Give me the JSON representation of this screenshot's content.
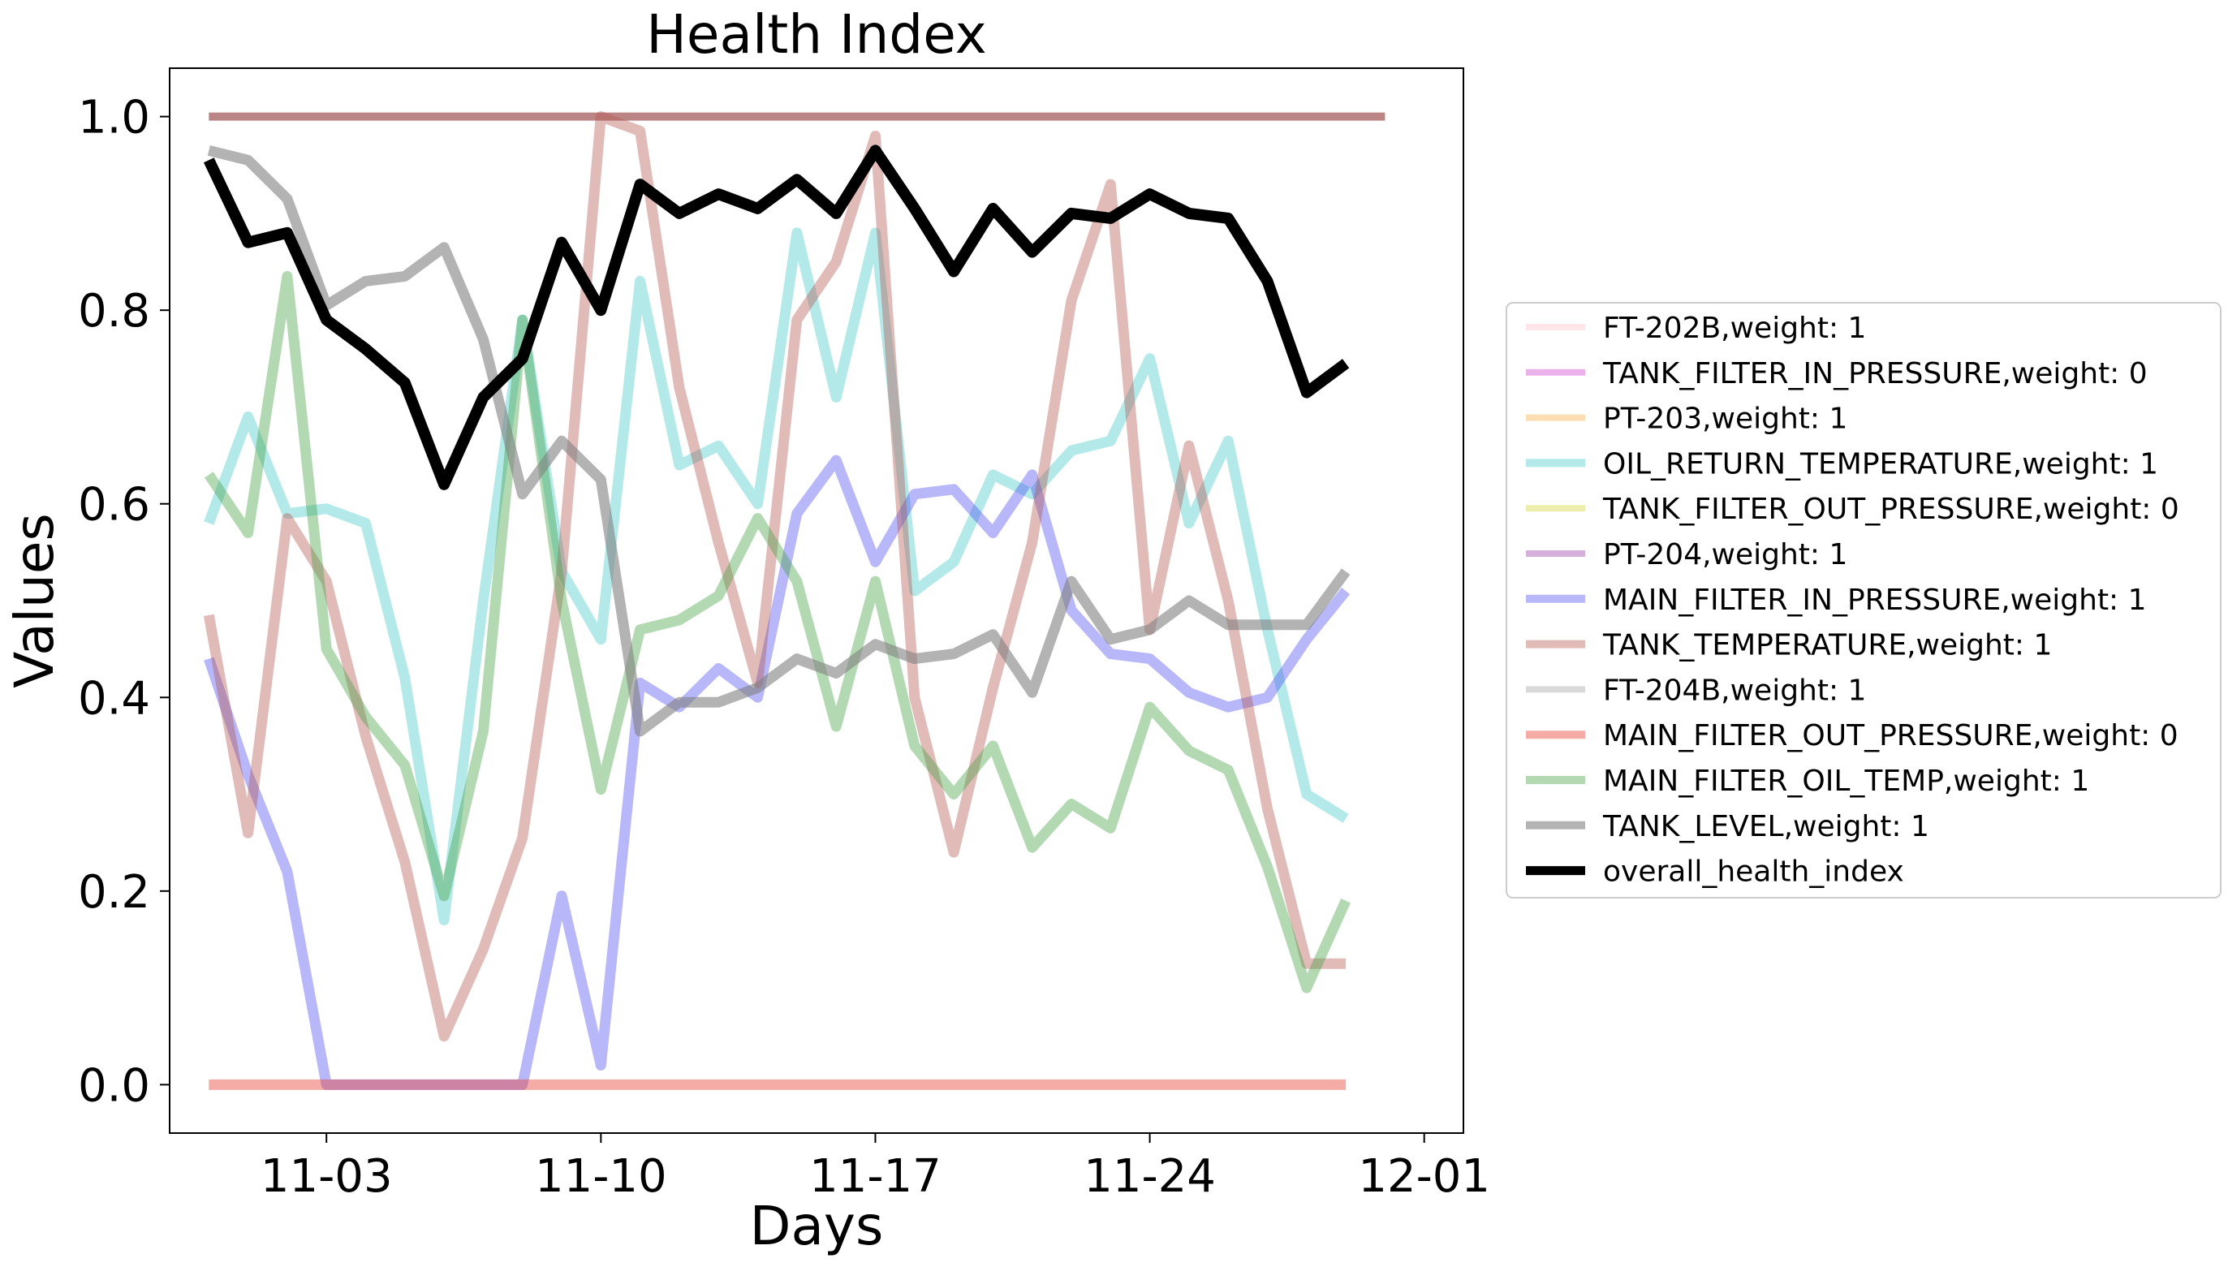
{
  "chart_data": {
    "type": "line",
    "title": "Health Index",
    "xlabel": "Days",
    "ylabel": "Values",
    "x_axis": {
      "type": "date",
      "year": 2023,
      "range": [
        "2023-10-30",
        "2023-12-02"
      ],
      "tick_dates": [
        "2023-11-03",
        "2023-11-10",
        "2023-11-17",
        "2023-11-24",
        "2023-12-01"
      ],
      "tick_labels": [
        "11-03",
        "11-10",
        "11-17",
        "11-24",
        "12-01"
      ]
    },
    "y_axis": {
      "range": [
        -0.05,
        1.05
      ],
      "ticks": [
        0.0,
        0.2,
        0.4,
        0.6,
        0.8,
        1.0
      ],
      "tick_labels": [
        "0.0",
        "0.2",
        "0.4",
        "0.6",
        "0.8",
        "1.0"
      ]
    },
    "grid": false,
    "legend_position": "right",
    "x": [
      "2023-10-31",
      "2023-11-01",
      "2023-11-02",
      "2023-11-03",
      "2023-11-04",
      "2023-11-05",
      "2023-11-06",
      "2023-11-07",
      "2023-11-08",
      "2023-11-09",
      "2023-11-10",
      "2023-11-11",
      "2023-11-12",
      "2023-11-13",
      "2023-11-14",
      "2023-11-15",
      "2023-11-16",
      "2023-11-17",
      "2023-11-18",
      "2023-11-19",
      "2023-11-20",
      "2023-11-21",
      "2023-11-22",
      "2023-11-23",
      "2023-11-24",
      "2023-11-25",
      "2023-11-26",
      "2023-11-27",
      "2023-11-28",
      "2023-11-29",
      "2023-11-30"
    ],
    "series": [
      {
        "name": "FT-202B,weight: 1",
        "color": "#ffc0cb",
        "alpha": 0.4,
        "width": 7,
        "values": [
          null,
          null,
          null,
          null,
          null,
          null,
          null,
          null,
          null,
          null,
          null,
          null,
          null,
          null,
          null,
          null,
          null,
          null,
          null,
          null,
          null,
          null,
          null,
          null,
          null,
          null,
          null,
          null,
          null,
          null,
          null
        ]
      },
      {
        "name": "TANK_FILTER_IN_PRESSURE,weight: 0",
        "color": "#c71fc7",
        "alpha": 0.35,
        "width": 7,
        "values": [
          null,
          null,
          null,
          null,
          null,
          null,
          null,
          null,
          null,
          null,
          null,
          null,
          null,
          null,
          null,
          null,
          null,
          null,
          null,
          null,
          null,
          null,
          null,
          null,
          null,
          null,
          null,
          null,
          null,
          null,
          null
        ]
      },
      {
        "name": "PT-203,weight: 1",
        "color": "#f5b041",
        "alpha": 0.4,
        "width": 7,
        "values": [
          null,
          null,
          null,
          null,
          null,
          null,
          null,
          null,
          null,
          null,
          null,
          null,
          null,
          null,
          null,
          null,
          null,
          null,
          null,
          null,
          null,
          null,
          null,
          null,
          null,
          null,
          null,
          null,
          null,
          null,
          null
        ]
      },
      {
        "name": "OIL_RETURN_TEMPERATURE,weight: 1",
        "color": "#40c8c8",
        "alpha": 0.4,
        "width": 9,
        "values": [
          0.58,
          0.69,
          0.59,
          0.595,
          0.58,
          0.42,
          0.17,
          0.5,
          0.79,
          0.53,
          0.46,
          0.83,
          0.64,
          0.66,
          0.6,
          0.88,
          0.71,
          0.88,
          0.51,
          0.54,
          0.63,
          0.61,
          0.655,
          0.665,
          0.75,
          0.58,
          0.665,
          0.47,
          0.3,
          0.275,
          null
        ]
      },
      {
        "name": "TANK_FILTER_OUT_PRESSURE,weight: 0",
        "color": "#d4d430",
        "alpha": 0.4,
        "width": 7,
        "values": [
          null,
          null,
          null,
          null,
          null,
          null,
          null,
          null,
          null,
          null,
          null,
          null,
          null,
          null,
          null,
          null,
          null,
          null,
          null,
          null,
          null,
          null,
          null,
          null,
          null,
          null,
          null,
          null,
          null,
          null,
          null
        ]
      },
      {
        "name": "PT-204,weight: 1",
        "color": "#a050b0",
        "alpha": 0.45,
        "width": 7,
        "values": [
          null,
          null,
          null,
          null,
          null,
          null,
          null,
          null,
          null,
          null,
          null,
          null,
          null,
          null,
          null,
          null,
          null,
          null,
          null,
          null,
          null,
          null,
          null,
          null,
          null,
          null,
          null,
          null,
          null,
          null,
          null
        ]
      },
      {
        "name": "MAIN_FILTER_IN_PRESSURE,weight: 1",
        "color": "#4c4cf0",
        "alpha": 0.4,
        "width": 9,
        "values": [
          0.44,
          0.32,
          0.22,
          0.0,
          0.0,
          0.0,
          0.0,
          0.0,
          0.0,
          0.195,
          0.02,
          0.415,
          0.39,
          0.43,
          0.4,
          0.59,
          0.645,
          0.54,
          0.61,
          0.615,
          0.57,
          0.63,
          0.49,
          0.445,
          0.44,
          0.405,
          0.39,
          0.4,
          0.46,
          0.51,
          null
        ]
      },
      {
        "name": "TANK_TEMPERATURE,weight: 1",
        "color": "#b5564e",
        "alpha": 0.4,
        "width": 9,
        "values": [
          0.485,
          0.26,
          0.585,
          0.52,
          0.36,
          0.23,
          0.05,
          0.14,
          0.255,
          0.53,
          1.0,
          0.985,
          0.72,
          0.56,
          0.415,
          0.79,
          0.85,
          0.98,
          0.4,
          0.24,
          0.41,
          0.56,
          0.81,
          0.93,
          0.47,
          0.66,
          0.5,
          0.285,
          0.125,
          0.125,
          null
        ]
      },
      {
        "name": "FT-204B,weight: 1",
        "color": "#bfbfbf",
        "alpha": 0.6,
        "width": 7,
        "values": [
          null,
          null,
          null,
          null,
          null,
          null,
          null,
          null,
          null,
          null,
          null,
          null,
          null,
          null,
          null,
          null,
          null,
          null,
          null,
          null,
          null,
          null,
          null,
          null,
          null,
          null,
          null,
          null,
          null,
          null,
          null
        ]
      },
      {
        "name": "MAIN_FILTER_OUT_PRESSURE,weight: 0",
        "color": "#e8463c",
        "alpha": 0.45,
        "width": 9,
        "values": [
          0,
          0,
          0,
          0,
          0,
          0,
          0,
          0,
          0,
          0,
          0,
          0,
          0,
          0,
          0,
          0,
          0,
          0,
          0,
          0,
          0,
          0,
          0,
          0,
          0,
          0,
          0,
          0,
          0,
          0,
          null
        ]
      },
      {
        "name": "MAIN_FILTER_OIL_TEMP,weight: 1",
        "color": "#40a040",
        "alpha": 0.4,
        "width": 9,
        "values": [
          0.63,
          0.57,
          0.835,
          0.45,
          0.38,
          0.33,
          0.195,
          0.365,
          0.79,
          0.5,
          0.305,
          0.47,
          0.48,
          0.505,
          0.585,
          0.52,
          0.37,
          0.52,
          0.35,
          0.3,
          0.35,
          0.245,
          0.29,
          0.265,
          0.39,
          0.345,
          0.325,
          0.225,
          0.1,
          0.19,
          null
        ]
      },
      {
        "name": "TANK_LEVEL,weight: 1",
        "color": "#808080",
        "alpha": 0.6,
        "width": 9,
        "values": [
          0.965,
          0.955,
          0.915,
          0.805,
          0.83,
          0.835,
          0.865,
          0.77,
          0.61,
          0.665,
          0.625,
          0.365,
          0.395,
          0.395,
          0.41,
          0.44,
          0.425,
          0.455,
          0.44,
          0.445,
          0.465,
          0.405,
          0.52,
          0.46,
          0.47,
          0.5,
          0.475,
          0.475,
          0.475,
          0.53,
          null
        ]
      },
      {
        "name": "overall_health_index",
        "color": "#000000",
        "alpha": 1.0,
        "width": 10,
        "values": [
          0.955,
          0.87,
          0.88,
          0.79,
          0.76,
          0.725,
          0.62,
          0.71,
          0.75,
          0.87,
          0.8,
          0.93,
          0.9,
          0.92,
          0.905,
          0.935,
          0.9,
          0.965,
          0.905,
          0.84,
          0.905,
          0.86,
          0.9,
          0.895,
          0.92,
          0.9,
          0.895,
          0.83,
          0.715,
          0.745,
          null
        ]
      }
    ],
    "reference_lines": [
      {
        "y": 1.0,
        "color": "#b07070",
        "alpha": 0.85
      }
    ]
  }
}
